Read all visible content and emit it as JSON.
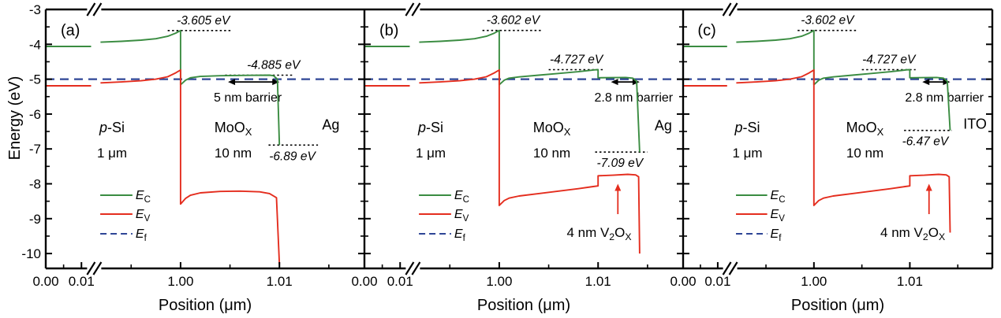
{
  "figure": {
    "y_axis": {
      "label": "Energy (eV)",
      "ticks": [
        -3,
        -4,
        -5,
        -6,
        -7,
        -8,
        -9,
        -10
      ],
      "minor_ticks": [
        -3.5,
        -4.5,
        -5.5,
        -6.5,
        -7.5,
        -8.5,
        -9.5
      ],
      "range": [
        -10.43,
        -3
      ]
    },
    "x_axis": {
      "label": "Position (μm)",
      "major_ticks": [
        {
          "pos": 0.0,
          "text": "0.00"
        },
        {
          "pos": 0.01,
          "text": "0.01"
        },
        {
          "pos": 1.0,
          "text": "1.00"
        },
        {
          "pos": 1.01,
          "text": "1.01"
        }
      ],
      "minor_ticks": [
        0.005,
        0.995,
        1.005,
        1.015
      ],
      "break_note": "axis break between 0.01 and 0.99 μm"
    },
    "legend": [
      {
        "key": "ec",
        "label": "*E*_{C}",
        "color": "#3a8c41",
        "dash": "solid"
      },
      {
        "key": "ev",
        "label": "*E*_{V}",
        "color": "#e42d1e",
        "dash": "solid"
      },
      {
        "key": "ef",
        "label": "*E*_{f}",
        "color": "#2e4596",
        "dash": "dashed"
      }
    ],
    "colors": {
      "ec": "#3a8c41",
      "ev": "#e42d1e",
      "ef": "#2e4596",
      "axis": "#000000",
      "annotation": "#000000",
      "background": "#ffffff"
    }
  },
  "chart_data": [
    {
      "type": "line",
      "label": "(a)",
      "ef_eV": -5.0,
      "regions": [
        {
          "name": "*p*-Si",
          "size": "1 μm"
        },
        {
          "name": "MoO_{X}",
          "size": "10 nm"
        }
      ],
      "contact": {
        "name": "Ag",
        "x": 1.0152,
        "energy": -6.44,
        "color": "#000000"
      },
      "annotations": {
        "si_peak": {
          "text": "-3.605 eV",
          "energy": -3.605,
          "x1": 0.9987,
          "x2": 1.0052,
          "text_x": 1.0023
        },
        "moox_level": {
          "text": "-4.885 eV",
          "energy": -4.885,
          "x1": 1.0045,
          "x2": 1.0115,
          "text_x": 1.0094
        },
        "barrier": {
          "text": "5 nm barrier",
          "energy": -5.08,
          "x1": 1.0048,
          "x2": 1.01,
          "text_x": 1.0068
        },
        "contact_level": {
          "text": "-6.89 eV",
          "energy": -6.89,
          "x1": 1.0089,
          "x2": 1.0139,
          "text_x": 1.0113
        },
        "v2ox": null
      },
      "series": {
        "ec_seg1": [
          [
            0,
            -4.06
          ],
          [
            0.0127,
            -4.06
          ]
        ],
        "ec_seg2": [
          [
            0.9919,
            -3.94
          ],
          [
            0.994,
            -3.915
          ],
          [
            0.996,
            -3.88
          ],
          [
            0.9975,
            -3.84
          ],
          [
            0.9987,
            -3.77
          ],
          [
            0.9995,
            -3.68
          ],
          [
            1.0,
            -3.605
          ],
          [
            1.0,
            -5.16
          ],
          [
            1.0005,
            -5.03
          ],
          [
            1.001,
            -4.96
          ],
          [
            1.002,
            -4.92
          ],
          [
            1.004,
            -4.9
          ],
          [
            1.007,
            -4.89
          ],
          [
            1.009,
            -4.885
          ],
          [
            1.0094,
            -4.9
          ],
          [
            1.0098,
            -5.0
          ],
          [
            1.01,
            -6.89
          ]
        ],
        "ev_seg1": [
          [
            0,
            -5.19
          ],
          [
            0.0127,
            -5.19
          ]
        ],
        "ev_seg2": [
          [
            0.9919,
            -5.105
          ],
          [
            0.994,
            -5.08
          ],
          [
            0.996,
            -5.045
          ],
          [
            0.9975,
            -5.0
          ],
          [
            0.9987,
            -4.93
          ],
          [
            0.9995,
            -4.82
          ],
          [
            1.0,
            -4.735
          ],
          [
            1.0,
            -8.58
          ],
          [
            1.0005,
            -8.42
          ],
          [
            1.001,
            -8.33
          ],
          [
            1.002,
            -8.26
          ],
          [
            1.004,
            -8.22
          ],
          [
            1.006,
            -8.21
          ],
          [
            1.008,
            -8.23
          ],
          [
            1.009,
            -8.28
          ],
          [
            1.0097,
            -8.4
          ],
          [
            1.01,
            -10.3
          ]
        ]
      }
    },
    {
      "type": "line",
      "label": "(b)",
      "ef_eV": -5.0,
      "regions": [
        {
          "name": "*p*-Si",
          "size": "1 μm"
        },
        {
          "name": "MoO_{X}",
          "size": "10 nm"
        }
      ],
      "contact": {
        "name": "Ag",
        "x": 1.0166,
        "energy": -6.47,
        "color": "#000000"
      },
      "annotations": {
        "si_peak": {
          "text": "-3.602 eV",
          "energy": -3.602,
          "x1": 0.9983,
          "x2": 1.0044,
          "text_x": 1.0014
        },
        "moox_level": {
          "text": "-4.727 eV",
          "energy": -4.727,
          "x1": 1.005,
          "x2": 1.0106,
          "text_x": 1.0078
        },
        "barrier": {
          "text": "2.8 nm barrier",
          "energy": -5.08,
          "x1": 1.0113,
          "x2": 1.0142,
          "text_x": 1.0136
        },
        "contact_level": {
          "text": "-7.09 eV",
          "energy": -7.09,
          "x1": 1.0097,
          "x2": 1.015,
          "text_x": 1.0122
        },
        "v2ox": {
          "text": "4 nm V_{2}O_{X}",
          "text_x": 1.0101,
          "text_energy": -9.52,
          "arrow_x": 1.012,
          "arrow_from": -8.87,
          "arrow_to": -8.0
        }
      },
      "series": {
        "ec_seg1": [
          [
            0,
            -4.06
          ],
          [
            0.0127,
            -4.06
          ]
        ],
        "ec_seg2": [
          [
            0.9919,
            -3.94
          ],
          [
            0.994,
            -3.915
          ],
          [
            0.996,
            -3.88
          ],
          [
            0.9975,
            -3.84
          ],
          [
            0.9987,
            -3.77
          ],
          [
            0.9995,
            -3.68
          ],
          [
            1.0,
            -3.602
          ],
          [
            1.0,
            -5.16
          ],
          [
            1.0005,
            -5.03
          ],
          [
            1.001,
            -4.97
          ],
          [
            1.002,
            -4.935
          ],
          [
            1.004,
            -4.885
          ],
          [
            1.006,
            -4.835
          ],
          [
            1.008,
            -4.785
          ],
          [
            1.0097,
            -4.732
          ],
          [
            1.01,
            -4.727
          ],
          [
            1.01,
            -4.96
          ],
          [
            1.0115,
            -4.955
          ],
          [
            1.0128,
            -4.95
          ],
          [
            1.0135,
            -4.97
          ],
          [
            1.0139,
            -5.06
          ],
          [
            1.0142,
            -7.09
          ]
        ],
        "ev_seg1": [
          [
            0,
            -5.19
          ],
          [
            0.0127,
            -5.19
          ]
        ],
        "ev_seg2": [
          [
            0.9919,
            -5.105
          ],
          [
            0.994,
            -5.08
          ],
          [
            0.996,
            -5.045
          ],
          [
            0.9975,
            -5.0
          ],
          [
            0.9987,
            -4.93
          ],
          [
            0.9995,
            -4.82
          ],
          [
            1.0,
            -4.735
          ],
          [
            1.0,
            -8.62
          ],
          [
            1.0005,
            -8.48
          ],
          [
            1.001,
            -8.41
          ],
          [
            1.002,
            -8.35
          ],
          [
            1.004,
            -8.28
          ],
          [
            1.006,
            -8.21
          ],
          [
            1.008,
            -8.14
          ],
          [
            1.0095,
            -8.08
          ],
          [
            1.01,
            -8.06
          ],
          [
            1.01,
            -7.77
          ],
          [
            1.0115,
            -7.755
          ],
          [
            1.013,
            -7.73
          ],
          [
            1.0138,
            -7.745
          ],
          [
            1.0141,
            -7.8
          ],
          [
            1.0142,
            -10.0
          ]
        ]
      }
    },
    {
      "type": "line",
      "label": "(c)",
      "ef_eV": -5.0,
      "regions": [
        {
          "name": "*p*-Si",
          "size": "1 μm"
        },
        {
          "name": "MoO_{X}",
          "size": "10 nm"
        }
      ],
      "contact": {
        "name": "ITO",
        "x": 1.0168,
        "energy": -6.42,
        "color": "#e42d1e"
      },
      "annotations": {
        "si_peak": {
          "text": "-3.602 eV",
          "energy": -3.602,
          "x1": 0.9983,
          "x2": 1.0044,
          "text_x": 1.0014
        },
        "moox_level": {
          "text": "-4.727 eV",
          "energy": -4.727,
          "x1": 1.005,
          "x2": 1.0106,
          "text_x": 1.0078
        },
        "barrier": {
          "text": "2.8 nm barrier",
          "energy": -5.08,
          "x1": 1.0113,
          "x2": 1.0142,
          "text_x": 1.0136
        },
        "contact_level": {
          "text": "-6.47 eV",
          "energy": -6.47,
          "x1": 1.0094,
          "x2": 1.0144,
          "text_x": 1.0116
        },
        "v2ox": {
          "text": "4 nm V_{2}O_{X}",
          "text_x": 1.0103,
          "text_energy": -9.52,
          "arrow_x": 1.012,
          "arrow_from": -8.87,
          "arrow_to": -8.0
        }
      },
      "series": {
        "ec_seg1": [
          [
            0,
            -4.06
          ],
          [
            0.0127,
            -4.06
          ]
        ],
        "ec_seg2": [
          [
            0.9919,
            -3.94
          ],
          [
            0.994,
            -3.915
          ],
          [
            0.996,
            -3.88
          ],
          [
            0.9975,
            -3.84
          ],
          [
            0.9987,
            -3.77
          ],
          [
            0.9995,
            -3.68
          ],
          [
            1.0,
            -3.602
          ],
          [
            1.0,
            -5.16
          ],
          [
            1.0005,
            -5.03
          ],
          [
            1.001,
            -4.97
          ],
          [
            1.002,
            -4.935
          ],
          [
            1.004,
            -4.885
          ],
          [
            1.006,
            -4.835
          ],
          [
            1.008,
            -4.785
          ],
          [
            1.0097,
            -4.732
          ],
          [
            1.01,
            -4.727
          ],
          [
            1.01,
            -4.96
          ],
          [
            1.0115,
            -4.955
          ],
          [
            1.0128,
            -4.95
          ],
          [
            1.0135,
            -4.97
          ],
          [
            1.0139,
            -5.06
          ],
          [
            1.0142,
            -6.47
          ]
        ],
        "ev_seg1": [
          [
            0,
            -5.19
          ],
          [
            0.0127,
            -5.19
          ]
        ],
        "ev_seg2": [
          [
            0.9919,
            -5.105
          ],
          [
            0.994,
            -5.08
          ],
          [
            0.996,
            -5.045
          ],
          [
            0.9975,
            -5.0
          ],
          [
            0.9987,
            -4.93
          ],
          [
            0.9995,
            -4.82
          ],
          [
            1.0,
            -4.735
          ],
          [
            1.0,
            -8.62
          ],
          [
            1.0005,
            -8.48
          ],
          [
            1.001,
            -8.41
          ],
          [
            1.002,
            -8.35
          ],
          [
            1.004,
            -8.28
          ],
          [
            1.006,
            -8.21
          ],
          [
            1.008,
            -8.14
          ],
          [
            1.0095,
            -8.08
          ],
          [
            1.01,
            -8.06
          ],
          [
            1.01,
            -7.77
          ],
          [
            1.0115,
            -7.755
          ],
          [
            1.013,
            -7.73
          ],
          [
            1.0138,
            -7.745
          ],
          [
            1.0141,
            -7.8
          ],
          [
            1.0142,
            -9.4
          ]
        ]
      }
    }
  ]
}
